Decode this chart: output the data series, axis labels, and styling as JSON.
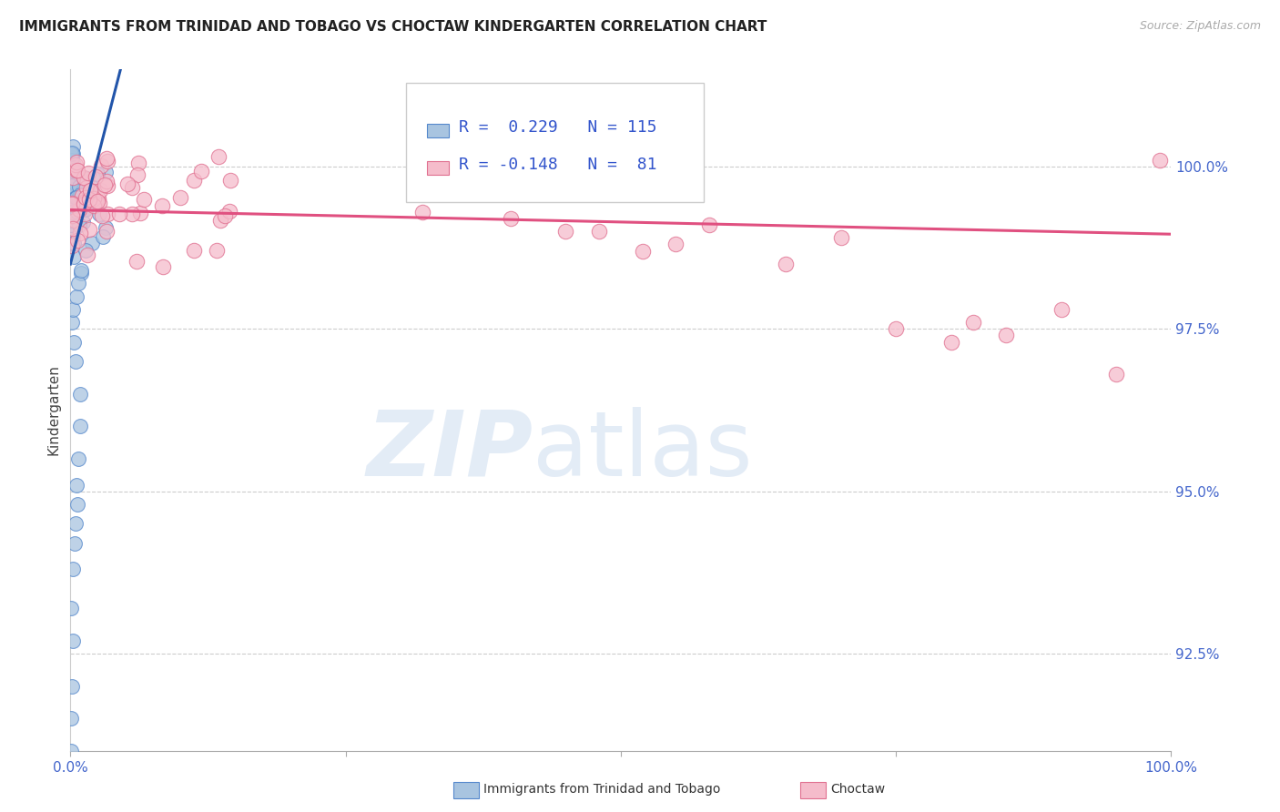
{
  "title": "IMMIGRANTS FROM TRINIDAD AND TOBAGO VS CHOCTAW KINDERGARTEN CORRELATION CHART",
  "source": "Source: ZipAtlas.com",
  "ylabel": "Kindergarten",
  "legend_label_blue": "Immigrants from Trinidad and Tobago",
  "legend_label_pink": "Choctaw",
  "r_blue": 0.229,
  "n_blue": 115,
  "r_pink": -0.148,
  "n_pink": 81,
  "blue_color": "#a8c4e0",
  "pink_color": "#f5bccb",
  "blue_edge_color": "#5588cc",
  "pink_edge_color": "#e07090",
  "blue_line_color": "#2255aa",
  "pink_line_color": "#e05080",
  "xlim": [
    0.0,
    100.0
  ],
  "ylim": [
    91.0,
    101.5
  ],
  "y_ticks": [
    92.5,
    95.0,
    97.5,
    100.0
  ],
  "x_ticks": [
    0,
    25,
    50,
    75,
    100
  ],
  "watermark_zip": "ZIP",
  "watermark_atlas": "atlas"
}
